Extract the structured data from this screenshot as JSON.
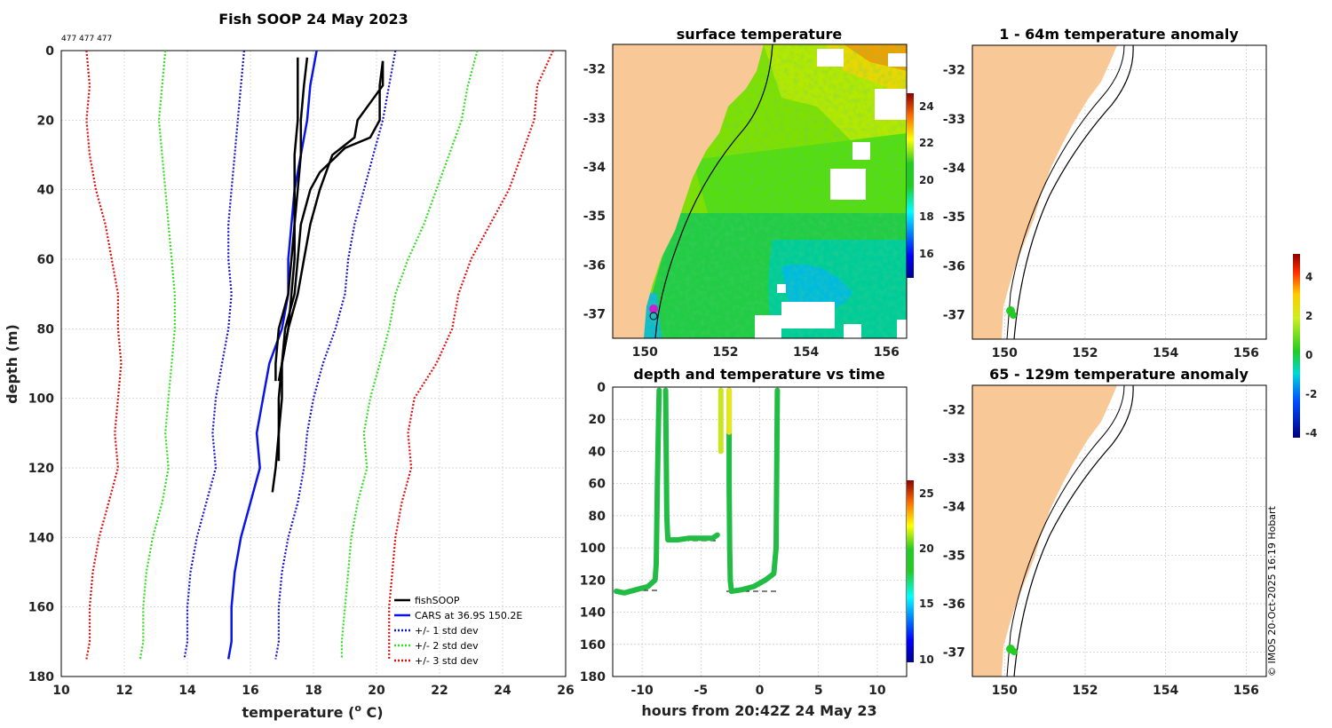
{
  "figure": {
    "credit": "© IMOS 20-Oct-2025 16:19 Hobart",
    "colors": {
      "land": "#f8c896",
      "profile": "#000000",
      "cars": "#0a14e6",
      "std1": "#1414cc",
      "std2": "#33dd22",
      "std3": "#e01010"
    }
  },
  "chart_data": [
    {
      "type": "line",
      "title": "Fish SOOP 24 May 2023",
      "subtitle": "477 477 477",
      "xlabel": "temperature (°C)",
      "xlabel_main": "temperature (",
      "xlabel_sup": "o",
      "xlabel_tail": " C)",
      "ylabel": "depth (m)",
      "xlim": [
        10,
        26
      ],
      "ylim": [
        180,
        0
      ],
      "xticks": [
        "10",
        "12",
        "14",
        "16",
        "18",
        "20",
        "22",
        "24",
        "26"
      ],
      "yticks": [
        "0",
        "20",
        "40",
        "60",
        "80",
        "100",
        "120",
        "140",
        "160",
        "180"
      ],
      "legend": [
        "fishSOOP",
        "CARS at 36.9S 150.2E",
        "+/- 1 std dev",
        "+/- 2 std dev",
        "+/- 3 std dev"
      ],
      "legend_position": "bottom-right",
      "series": [
        {
          "name": "CARS at 36.9S 150.2E",
          "style": "solid",
          "depth": [
            0,
            10,
            20,
            30,
            40,
            50,
            60,
            70,
            80,
            90,
            100,
            110,
            120,
            130,
            140,
            150,
            160,
            170,
            175
          ],
          "temp": [
            18.1,
            17.9,
            17.8,
            17.6,
            17.4,
            17.3,
            17.2,
            17.2,
            17.0,
            16.6,
            16.4,
            16.2,
            16.3,
            16.0,
            15.7,
            15.5,
            15.4,
            15.4,
            15.3
          ]
        },
        {
          "name": "-1 std",
          "style": "dotted",
          "depth": [
            0,
            10,
            20,
            30,
            40,
            50,
            60,
            70,
            80,
            90,
            100,
            110,
            120,
            130,
            140,
            150,
            160,
            170,
            175
          ],
          "temp": [
            15.8,
            15.7,
            15.6,
            15.5,
            15.4,
            15.3,
            15.3,
            15.4,
            15.3,
            15.1,
            14.9,
            14.8,
            14.9,
            14.6,
            14.3,
            14.1,
            14.0,
            14.0,
            13.9
          ]
        },
        {
          "name": "+1 std",
          "style": "dotted",
          "depth": [
            0,
            10,
            20,
            30,
            40,
            50,
            60,
            70,
            80,
            90,
            100,
            110,
            120,
            130,
            140,
            150,
            160,
            170,
            175
          ],
          "temp": [
            20.6,
            20.4,
            20.2,
            19.9,
            19.6,
            19.3,
            19.1,
            19.0,
            18.7,
            18.3,
            18.0,
            17.8,
            17.7,
            17.5,
            17.2,
            17.0,
            16.9,
            16.9,
            16.8
          ]
        },
        {
          "name": "-2 std",
          "style": "dotted",
          "depth": [
            0,
            10,
            20,
            30,
            40,
            50,
            60,
            70,
            80,
            90,
            100,
            110,
            120,
            130,
            140,
            150,
            160,
            170,
            175
          ],
          "temp": [
            13.3,
            13.2,
            13.1,
            13.2,
            13.3,
            13.4,
            13.5,
            13.6,
            13.6,
            13.5,
            13.4,
            13.3,
            13.4,
            13.2,
            12.9,
            12.7,
            12.6,
            12.6,
            12.5
          ]
        },
        {
          "name": "+2 std",
          "style": "dotted",
          "depth": [
            0,
            10,
            20,
            30,
            40,
            50,
            60,
            70,
            80,
            90,
            100,
            110,
            120,
            130,
            140,
            150,
            160,
            170,
            175
          ],
          "temp": [
            23.2,
            22.9,
            22.7,
            22.3,
            21.9,
            21.5,
            21.0,
            20.6,
            20.4,
            20.1,
            19.8,
            19.6,
            19.7,
            19.4,
            19.2,
            19.1,
            19.0,
            18.9,
            18.9
          ]
        },
        {
          "name": "-3 std",
          "style": "dotted",
          "depth": [
            0,
            10,
            20,
            30,
            40,
            50,
            60,
            70,
            80,
            90,
            100,
            110,
            120,
            130,
            140,
            150,
            160,
            170,
            175
          ],
          "temp": [
            10.8,
            10.9,
            10.8,
            10.9,
            11.1,
            11.4,
            11.6,
            11.8,
            11.8,
            11.9,
            11.8,
            11.7,
            11.8,
            11.5,
            11.2,
            11.0,
            10.9,
            10.9,
            10.8
          ]
        },
        {
          "name": "+3 std",
          "style": "dotted",
          "depth": [
            0,
            10,
            20,
            30,
            40,
            50,
            60,
            70,
            80,
            90,
            100,
            110,
            120,
            130,
            140,
            150,
            160,
            170,
            175
          ],
          "temp": [
            25.6,
            25.1,
            25.0,
            24.6,
            24.2,
            23.6,
            23.0,
            22.6,
            22.4,
            21.9,
            21.2,
            21.0,
            21.1,
            20.8,
            20.6,
            20.5,
            20.4,
            20.4,
            20.4
          ]
        },
        {
          "name": "fishSOOP cast 1",
          "style": "solid",
          "depth": [
            2,
            10,
            20,
            30,
            40,
            50,
            60,
            70,
            80,
            90,
            95
          ],
          "temp": [
            17.5,
            17.5,
            17.5,
            17.4,
            17.4,
            17.4,
            17.3,
            17.2,
            16.9,
            16.8,
            16.8
          ]
        },
        {
          "name": "fishSOOP cast 2",
          "style": "solid",
          "depth": [
            2,
            10,
            20,
            30,
            40,
            50,
            60,
            70,
            80,
            90,
            95
          ],
          "temp": [
            17.8,
            17.7,
            17.6,
            17.6,
            17.5,
            17.4,
            17.4,
            17.3,
            17.2,
            17.0,
            16.9
          ]
        },
        {
          "name": "fishSOOP cast 3",
          "style": "solid",
          "depth": [
            3,
            10,
            15,
            20,
            25,
            30,
            40,
            50,
            60,
            70,
            80,
            90,
            100,
            110,
            118
          ],
          "temp": [
            20.2,
            20.2,
            19.8,
            19.4,
            19.3,
            18.6,
            18.2,
            17.9,
            17.7,
            17.5,
            17.2,
            17.0,
            17.0,
            16.9,
            16.9
          ]
        },
        {
          "name": "fishSOOP cast 4",
          "style": "solid",
          "depth": [
            3,
            10,
            20,
            25,
            28,
            35,
            40,
            50,
            60,
            70,
            80,
            90,
            100,
            110,
            120,
            127
          ],
          "temp": [
            20.2,
            20.1,
            20.1,
            19.8,
            19.0,
            18.2,
            17.9,
            17.6,
            17.5,
            17.4,
            17.1,
            17.0,
            16.9,
            16.9,
            16.8,
            16.7
          ]
        }
      ]
    },
    {
      "type": "heatmap",
      "title": "surface temperature",
      "xlim": [
        149.2,
        156.5
      ],
      "ylim": [
        -37.5,
        -31.5
      ],
      "xticks": [
        "150",
        "152",
        "154",
        "156"
      ],
      "yticks": [
        "-32",
        "-33",
        "-34",
        "-35",
        "-36",
        "-37"
      ],
      "colorbar": {
        "range": [
          15,
          25
        ],
        "ticks": [
          "16",
          "18",
          "20",
          "22",
          "24"
        ]
      }
    },
    {
      "type": "scatter",
      "title": "depth and temperature vs time",
      "xlabel": "hours from 20:42Z 24 May 23",
      "xlim": [
        -12.5,
        12.5
      ],
      "ylim": [
        180,
        0
      ],
      "xticks": [
        "-10",
        "-5",
        "0",
        "5",
        "10"
      ],
      "yticks": [
        "0",
        "20",
        "40",
        "60",
        "80",
        "100",
        "120",
        "140",
        "160",
        "180"
      ],
      "colorbar": {
        "range": [
          9.5,
          26.5
        ],
        "ticks": [
          "10",
          "15",
          "20",
          "25"
        ]
      },
      "segments": [
        {
          "hours": [
            -12.2,
            -11.5,
            -10.5,
            -9.5,
            -8.9,
            -8.8,
            -8.7,
            -8.6,
            -8.55
          ],
          "depth": [
            127,
            128,
            126,
            124,
            120,
            110,
            60,
            20,
            2
          ]
        },
        {
          "hours": [
            -8.0,
            -7.95,
            -7.9,
            -7.85,
            -7.8,
            -7,
            -6,
            -5,
            -4.0,
            -3.6
          ],
          "depth": [
            2,
            40,
            80,
            90,
            95,
            95,
            94,
            94,
            94,
            92
          ]
        },
        {
          "hours": [
            -3.3,
            -3.3,
            -3.3,
            -3.3,
            -3.3
          ],
          "depth": [
            2,
            15,
            25,
            30,
            40
          ]
        },
        {
          "hours": [
            -2.6,
            -2.6,
            -2.6,
            -2.6,
            -2.55,
            -2.5,
            -2.4,
            -1.5,
            -0.5,
            0.5,
            1.2,
            1.4,
            1.5
          ],
          "depth": [
            2,
            20,
            30,
            60,
            100,
            120,
            127,
            126,
            124,
            120,
            116,
            100,
            2
          ]
        }
      ]
    },
    {
      "type": "heatmap",
      "title": "1 - 64m temperature anomaly",
      "xlim": [
        149.2,
        156.5
      ],
      "ylim": [
        -37.5,
        -31.5
      ],
      "xticks": [
        "150",
        "152",
        "154",
        "156"
      ],
      "yticks": [
        "-32",
        "-33",
        "-34",
        "-35",
        "-36",
        "-37"
      ],
      "colorbar": {
        "range": [
          -4.3,
          5
        ],
        "ticks": [
          "4",
          "2",
          "0",
          "-2",
          "-4"
        ]
      }
    },
    {
      "type": "heatmap",
      "title": "65 - 129m temperature anomaly",
      "xlim": [
        149.2,
        156.5
      ],
      "ylim": [
        -37.5,
        -31.5
      ],
      "xticks": [
        "150",
        "152",
        "154",
        "156"
      ],
      "yticks": [
        "-32",
        "-33",
        "-34",
        "-35",
        "-36",
        "-37"
      ]
    }
  ]
}
